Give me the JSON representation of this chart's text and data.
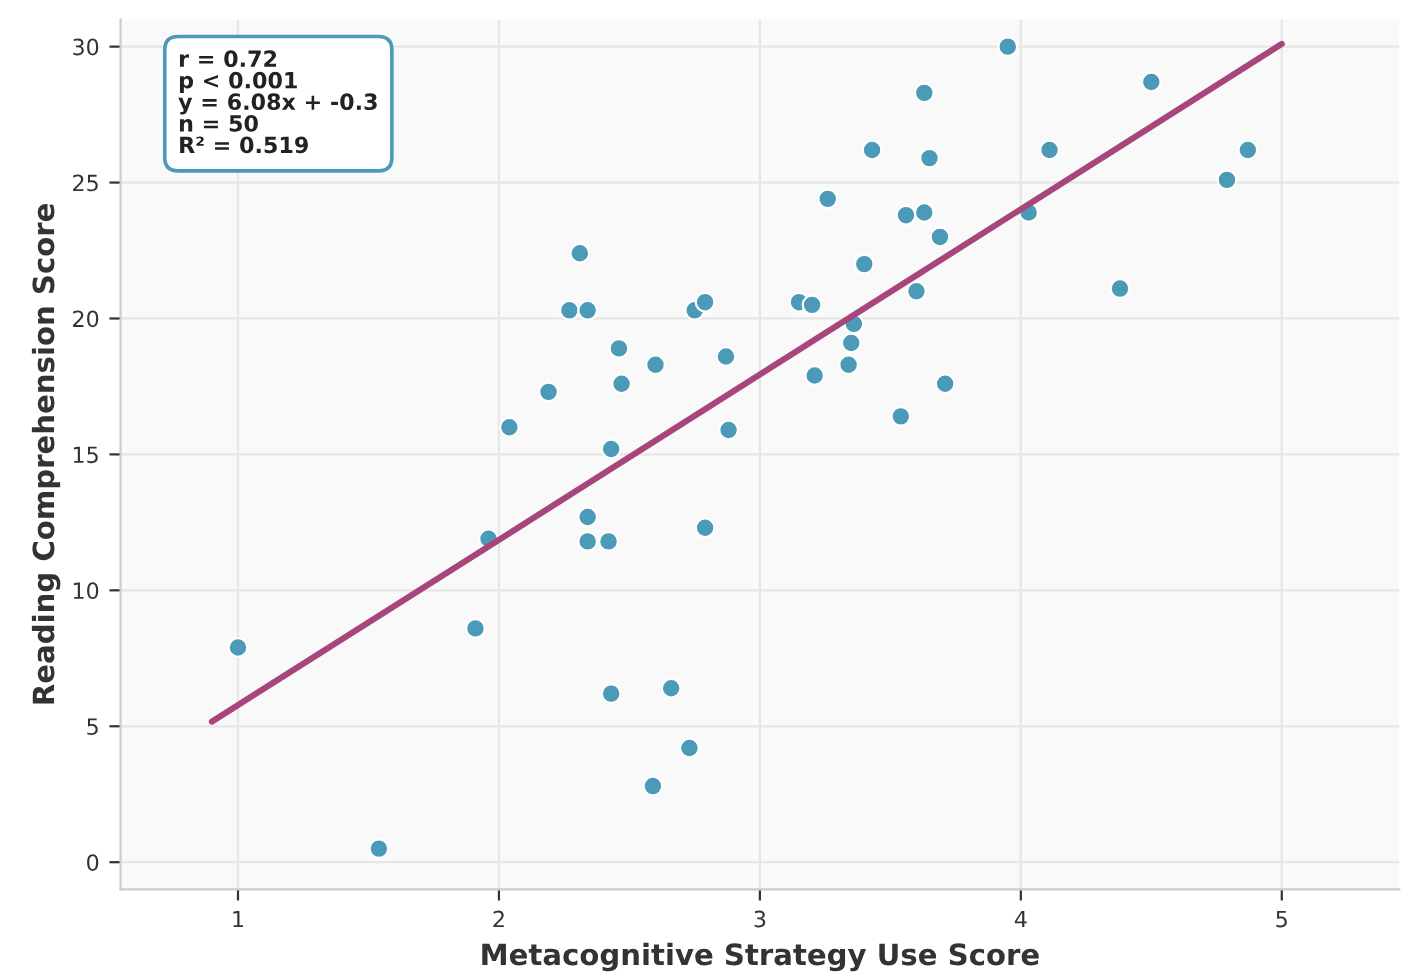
{
  "chart_data": {
    "type": "scatter",
    "xlabel": "Metacognitive Strategy Use Score",
    "ylabel": "Reading Comprehension Score",
    "annotations": [
      "r = 0.72\np < 0.001\ny = 6.08x + -0.3\nn = 50\nR² = 0.519"
    ],
    "xlim": [
      0.55,
      5.45
    ],
    "ylim": [
      -1,
      31
    ],
    "xticks": [
      1,
      2,
      3,
      4,
      5
    ],
    "yticks": [
      0,
      5,
      10,
      15,
      20,
      25,
      30
    ],
    "grid": true,
    "series": [
      {
        "marker": "circle",
        "color": "#4a9ab8",
        "x": [
          1.0,
          1.54,
          1.91,
          1.96,
          2.04,
          2.19,
          2.27,
          2.31,
          2.34,
          2.34,
          2.34,
          2.42,
          2.43,
          2.43,
          2.46,
          2.47,
          2.6,
          2.59,
          2.66,
          2.73,
          2.75,
          2.79,
          2.79,
          2.87,
          2.88,
          3.15,
          3.2,
          3.21,
          3.34,
          3.35,
          3.36,
          3.4,
          3.26,
          3.43,
          3.54,
          3.56,
          3.6,
          3.63,
          3.63,
          3.65,
          3.69,
          3.71,
          3.95,
          4.03,
          4.11,
          4.38,
          4.5,
          4.79,
          4.87
        ],
        "values": [
          7.9,
          0.5,
          8.6,
          11.9,
          16.0,
          17.3,
          20.3,
          22.4,
          20.3,
          11.8,
          12.7,
          11.8,
          15.2,
          6.2,
          18.9,
          17.6,
          18.3,
          2.8,
          6.4,
          4.2,
          20.3,
          20.6,
          12.3,
          18.6,
          15.9,
          20.6,
          20.5,
          17.9,
          18.3,
          19.1,
          19.8,
          22.0,
          24.4,
          26.2,
          16.4,
          23.8,
          21.0,
          23.9,
          28.3,
          25.9,
          23.0,
          17.6,
          30.0,
          23.9,
          26.2,
          21.1,
          28.7,
          25.1,
          26.2
        ]
      },
      {
        "type": "line",
        "color": "#a8467c",
        "x": [
          0.9,
          5.0
        ],
        "values": [
          5.17,
          30.1
        ]
      }
    ]
  }
}
